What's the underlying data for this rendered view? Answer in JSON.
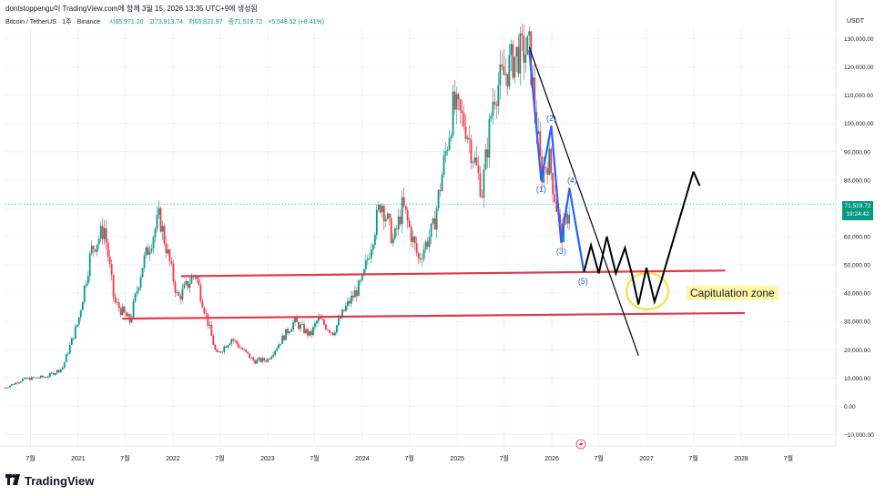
{
  "header": {
    "publisher_line": "dontstoppengu이 TradingView.com에 함께 3월 15, 2026 13:35 UTC+9에 생성됨"
  },
  "legend": {
    "symbol": "Bitcoin / TetherUS · 1주 · Binance",
    "open": "시65,971.20",
    "high": "고73,913.74",
    "low": "저65,821.97",
    "close": "종71,519.72",
    "change": "+5,548.52 (+8.41%)"
  },
  "currency": "USDT",
  "price_badge": {
    "price": "71,519.72",
    "countdown": "19:24:42"
  },
  "brand": "TradingView",
  "annotation_label": "Capitulation zone",
  "colors": {
    "up": "#089981",
    "down": "#f23645",
    "support": "#e0394d",
    "wave": "#2962ff",
    "projection": "#000000",
    "zone": "#f5e356"
  },
  "chart_data": {
    "type": "candlestick",
    "y_axis": {
      "ticks": [
        -10000,
        0,
        10000,
        20000,
        30000,
        40000,
        50000,
        60000,
        70000,
        80000,
        90000,
        100000,
        110000,
        120000,
        130000
      ],
      "tick_labels": [
        "−10,000.00",
        "0.00",
        "10,000.00",
        "20,000.00",
        "30,000.00",
        "40,000.00",
        "50,000.00",
        "60,000.00",
        "70,000.00",
        "80,000.00",
        "90,000.00",
        "100,000.00",
        "110,000.00",
        "120,000.00",
        "130,000.00"
      ],
      "range": [
        -14000,
        134000
      ]
    },
    "x_axis": {
      "ticks": [
        "2020-07-01",
        "2021-01-01",
        "2021-07-01",
        "2022-01-01",
        "2022-07-01",
        "2023-01-01",
        "2023-07-01",
        "2024-01-01",
        "2024-07-01",
        "2025-01-01",
        "2025-07-01",
        "2026-01-01",
        "2026-07-01",
        "2027-01-01",
        "2027-07-01",
        "2028-01-01",
        "2028-07-01"
      ],
      "tick_labels": [
        "7월",
        "2021",
        "7월",
        "2022",
        "7월",
        "2023",
        "7월",
        "2024",
        "7월",
        "2025",
        "7월",
        "2026",
        "7월",
        "2027",
        "7월",
        "2028",
        "7월"
      ],
      "range": [
        "2020-03-23",
        "2028-12-31"
      ]
    },
    "price_path": [
      [
        "2020-03-23",
        6500
      ],
      [
        "2020-06-01",
        9500
      ],
      [
        "2020-09-01",
        10500
      ],
      [
        "2020-11-01",
        13500
      ],
      [
        "2021-01-01",
        30000
      ],
      [
        "2021-02-20",
        55000
      ],
      [
        "2021-04-12",
        63000
      ],
      [
        "2021-05-20",
        37000
      ],
      [
        "2021-07-20",
        30000
      ],
      [
        "2021-09-06",
        50000
      ],
      [
        "2021-11-10",
        67000
      ],
      [
        "2022-01-20",
        38000
      ],
      [
        "2022-03-28",
        47000
      ],
      [
        "2022-06-18",
        18000
      ],
      [
        "2022-08-15",
        24000
      ],
      [
        "2022-11-09",
        16000
      ],
      [
        "2023-01-01",
        16500
      ],
      [
        "2023-04-14",
        30000
      ],
      [
        "2023-06-15",
        25000
      ],
      [
        "2023-07-15",
        31000
      ],
      [
        "2023-09-10",
        26000
      ],
      [
        "2023-10-30",
        35000
      ],
      [
        "2024-01-01",
        44000
      ],
      [
        "2024-03-14",
        73000
      ],
      [
        "2024-05-01",
        58000
      ],
      [
        "2024-06-05",
        71000
      ],
      [
        "2024-08-05",
        52000
      ],
      [
        "2024-10-01",
        63000
      ],
      [
        "2024-12-17",
        106000
      ],
      [
        "2025-02-01",
        100000
      ],
      [
        "2025-04-07",
        76000
      ],
      [
        "2025-05-22",
        111000
      ],
      [
        "2025-08-14",
        124000
      ],
      [
        "2025-10-06",
        126000
      ],
      [
        "2025-11-21",
        82000
      ],
      [
        "2025-12-20",
        88000
      ],
      [
        "2026-02-06",
        60000
      ],
      [
        "2026-03-15",
        71519
      ]
    ],
    "support_lines": [
      {
        "from": [
          "2022-02-01",
          46000
        ],
        "to": [
          "2027-11-01",
          48000
        ]
      },
      {
        "from": [
          "2021-06-20",
          31000
        ],
        "to": [
          "2028-01-15",
          33000
        ]
      }
    ],
    "wave_path": [
      [
        "2025-10-06",
        126000
      ],
      [
        "2025-11-21",
        80000
      ],
      [
        "2025-12-30",
        99000
      ],
      [
        "2026-02-06",
        58000
      ],
      [
        "2026-03-10",
        77000
      ],
      [
        "2026-05-05",
        47500
      ]
    ],
    "wave_labels": [
      {
        "text": "(1)",
        "at": [
          "2025-11-21",
          80000
        ]
      },
      {
        "text": "(2)",
        "at": [
          "2025-12-30",
          99000
        ]
      },
      {
        "text": "(3)",
        "at": [
          "2026-02-06",
          58000
        ]
      },
      {
        "text": "(4)",
        "at": [
          "2026-03-10",
          77000
        ]
      },
      {
        "text": "(5)",
        "at": [
          "2026-05-05",
          47500
        ]
      }
    ],
    "trend_line": {
      "from": [
        "2025-10-06",
        127000
      ],
      "to": [
        "2026-12-01",
        18000
      ]
    },
    "projection_path": [
      [
        "2026-05-05",
        47500
      ],
      [
        "2026-06-01",
        57000
      ],
      [
        "2026-07-01",
        47000
      ],
      [
        "2026-08-01",
        60000
      ],
      [
        "2026-09-05",
        47000
      ],
      [
        "2026-10-10",
        56000
      ],
      [
        "2026-11-05",
        47000
      ],
      [
        "2026-12-01",
        36000
      ],
      [
        "2027-01-01",
        49000
      ],
      [
        "2027-02-01",
        37000
      ],
      [
        "2027-03-01",
        45000
      ],
      [
        "2027-07-01",
        83000
      ]
    ],
    "arrowhead": {
      "from": [
        "2027-07-01",
        83000
      ],
      "to": [
        "2027-07-25",
        78000
      ]
    },
    "capitulation_zone": {
      "center": [
        "2027-01-01",
        41000
      ]
    }
  }
}
